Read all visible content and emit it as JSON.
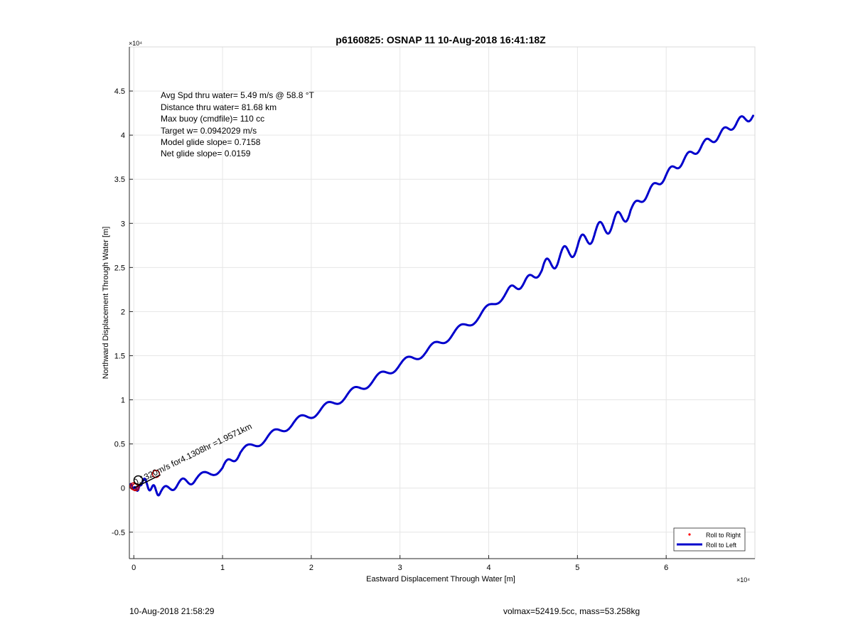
{
  "chart_data": {
    "type": "line",
    "title": "p6160825: OSNAP 11 10-Aug-2018 16:41:18Z",
    "xlabel": "Eastward Displacement Through Water [m]",
    "ylabel": "Northward Displacement Through Water [m]",
    "x_exponent_label": "×10⁴",
    "y_exponent_label": "×10⁴",
    "xlim": [
      -0.05,
      7.0
    ],
    "ylim": [
      -0.8,
      5.0
    ],
    "xticks": [
      0,
      1,
      2,
      3,
      4,
      5,
      6
    ],
    "yticks": [
      -0.5,
      0,
      0.5,
      1,
      1.5,
      2,
      2.5,
      3,
      3.5,
      4,
      4.5
    ],
    "xtick_labels": [
      "0",
      "1",
      "2",
      "3",
      "4",
      "5",
      "6"
    ],
    "ytick_labels": [
      "-0.5",
      "0",
      "0.5",
      "1",
      "1.5",
      "2",
      "2.5",
      "3",
      "3.5",
      "4",
      "4.5"
    ],
    "grid": true,
    "annotations": [
      "Avg Spd thru water=  5.49 m/s @  58.8 °T",
      "Distance thru water= 81.68 km",
      "Max buoy (cmdfile)= 110 cc",
      "Target w= 0.0942029 m/s",
      "Model glide slope= 0.7158",
      "Net glide slope= 0.0159"
    ],
    "current_label": "0.1320m/s for4.1308hr =1.9571km",
    "legend": {
      "position": "bottom-right",
      "entries": [
        {
          "name": "Roll to Right",
          "color": "#ff0000",
          "marker": "dot"
        },
        {
          "name": "Roll to Left",
          "color": "#0000cc",
          "marker": "line"
        }
      ]
    },
    "series": [
      {
        "name": "Roll to Left",
        "color": "#0000cc",
        "x": [
          -0.04,
          0.0,
          0.05,
          0.1,
          0.2,
          0.3,
          0.5,
          0.7,
          1.0,
          1.2,
          1.5,
          1.8,
          2.1,
          2.4,
          2.7,
          3.0,
          3.3,
          3.6,
          3.9,
          4.2,
          4.4,
          4.6,
          4.8,
          5.0,
          5.2,
          5.4,
          5.6,
          5.8,
          6.0,
          6.2,
          6.4,
          6.6,
          6.8,
          6.98
        ],
        "y": [
          0.04,
          0.0,
          -0.02,
          0.08,
          0.0,
          -0.05,
          0.05,
          0.1,
          0.23,
          0.4,
          0.57,
          0.74,
          0.88,
          1.05,
          1.22,
          1.4,
          1.55,
          1.75,
          1.95,
          2.22,
          2.33,
          2.47,
          2.62,
          2.74,
          2.9,
          3.0,
          3.15,
          3.35,
          3.55,
          3.72,
          3.88,
          4.0,
          4.15,
          4.22
        ]
      }
    ],
    "roll_right_points": {
      "x": [
        0.0,
        0.02,
        0.25
      ],
      "y": [
        0.02,
        0.01,
        0.16
      ]
    }
  },
  "footer": {
    "timestamp": "10-Aug-2018 21:58:29",
    "stats": "volmax=52419.5cc, mass=53.258kg"
  }
}
